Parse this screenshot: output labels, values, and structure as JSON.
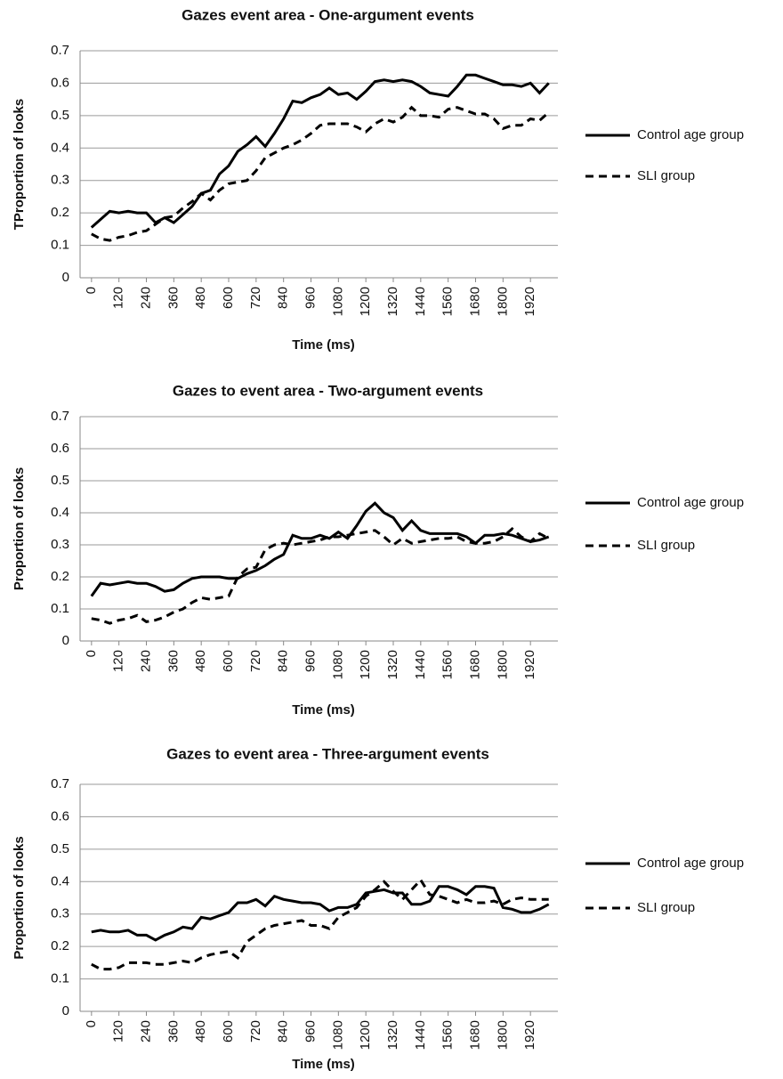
{
  "chart_data": [
    {
      "type": "line",
      "title": "Gazes event area - One-argument events",
      "xlabel": "Time (ms)",
      "ylabel": "TProportion of looks",
      "x": [
        0,
        40,
        80,
        120,
        160,
        200,
        240,
        280,
        320,
        360,
        400,
        440,
        480,
        520,
        560,
        600,
        640,
        680,
        720,
        760,
        800,
        840,
        880,
        920,
        960,
        1000,
        1040,
        1080,
        1120,
        1160,
        1200,
        1240,
        1280,
        1320,
        1360,
        1400,
        1440,
        1480,
        1520,
        1560,
        1600,
        1640,
        1680,
        1720,
        1760,
        1800,
        1840,
        1880,
        1920,
        1960,
        2000
      ],
      "xlim": [
        -50,
        2040
      ],
      "xticks": [
        0,
        120,
        240,
        360,
        480,
        600,
        720,
        840,
        960,
        1080,
        1200,
        1320,
        1440,
        1560,
        1680,
        1800,
        1920
      ],
      "ylim": [
        0,
        0.7
      ],
      "yticks": [
        0,
        0.1,
        0.2,
        0.3,
        0.4,
        0.5,
        0.6,
        0.7
      ],
      "grid": true,
      "series": [
        {
          "name": "Control age group",
          "color": "#000000",
          "dash": "solid",
          "values": [
            0.155,
            0.18,
            0.205,
            0.2,
            0.205,
            0.2,
            0.2,
            0.17,
            0.185,
            0.17,
            0.195,
            0.22,
            0.26,
            0.27,
            0.32,
            0.345,
            0.39,
            0.41,
            0.435,
            0.405,
            0.445,
            0.49,
            0.545,
            0.54,
            0.555,
            0.565,
            0.585,
            0.565,
            0.57,
            0.55,
            0.575,
            0.605,
            0.61,
            0.605,
            0.61,
            0.605,
            0.59,
            0.57,
            0.565,
            0.56,
            0.59,
            0.625,
            0.625,
            0.615,
            0.605,
            0.595,
            0.595,
            0.59,
            0.6,
            0.57,
            0.6
          ]
        },
        {
          "name": "SLI group",
          "color": "#000000",
          "dash": "dashed",
          "values": [
            0.135,
            0.12,
            0.115,
            0.125,
            0.13,
            0.14,
            0.145,
            0.165,
            0.185,
            0.19,
            0.215,
            0.235,
            0.26,
            0.24,
            0.27,
            0.29,
            0.295,
            0.3,
            0.33,
            0.37,
            0.385,
            0.4,
            0.41,
            0.425,
            0.445,
            0.47,
            0.475,
            0.475,
            0.475,
            0.465,
            0.45,
            0.475,
            0.49,
            0.48,
            0.495,
            0.525,
            0.5,
            0.5,
            0.495,
            0.52,
            0.525,
            0.515,
            0.505,
            0.505,
            0.49,
            0.46,
            0.47,
            0.47,
            0.49,
            0.485,
            0.51
          ]
        }
      ]
    },
    {
      "type": "line",
      "title": "Gazes to event area - Two-argument events",
      "xlabel": "Time (ms)",
      "ylabel": "Proportion of looks",
      "x": [
        0,
        40,
        80,
        120,
        160,
        200,
        240,
        280,
        320,
        360,
        400,
        440,
        480,
        520,
        560,
        600,
        640,
        680,
        720,
        760,
        800,
        840,
        880,
        920,
        960,
        1000,
        1040,
        1080,
        1120,
        1160,
        1200,
        1240,
        1280,
        1320,
        1360,
        1400,
        1440,
        1480,
        1520,
        1560,
        1600,
        1640,
        1680,
        1720,
        1760,
        1800,
        1840,
        1880,
        1920,
        1960,
        2000
      ],
      "xlim": [
        -50,
        2040
      ],
      "xticks": [
        0,
        120,
        240,
        360,
        480,
        600,
        720,
        840,
        960,
        1080,
        1200,
        1320,
        1440,
        1560,
        1680,
        1800,
        1920
      ],
      "ylim": [
        0,
        0.7
      ],
      "yticks": [
        0,
        0.1,
        0.2,
        0.3,
        0.4,
        0.5,
        0.6,
        0.7
      ],
      "grid": true,
      "series": [
        {
          "name": "Control age group",
          "color": "#000000",
          "dash": "solid",
          "values": [
            0.14,
            0.18,
            0.175,
            0.18,
            0.185,
            0.18,
            0.18,
            0.17,
            0.155,
            0.16,
            0.18,
            0.195,
            0.2,
            0.2,
            0.2,
            0.195,
            0.195,
            0.21,
            0.22,
            0.235,
            0.255,
            0.27,
            0.33,
            0.32,
            0.32,
            0.33,
            0.32,
            0.34,
            0.32,
            0.36,
            0.405,
            0.43,
            0.4,
            0.385,
            0.345,
            0.375,
            0.345,
            0.335,
            0.335,
            0.335,
            0.335,
            0.325,
            0.305,
            0.33,
            0.33,
            0.335,
            0.33,
            0.32,
            0.31,
            0.315,
            0.325
          ]
        },
        {
          "name": "SLI group",
          "color": "#000000",
          "dash": "dashed",
          "values": [
            0.07,
            0.065,
            0.055,
            0.065,
            0.07,
            0.08,
            0.06,
            0.065,
            0.075,
            0.09,
            0.1,
            0.12,
            0.135,
            0.13,
            0.135,
            0.14,
            0.2,
            0.225,
            0.23,
            0.285,
            0.3,
            0.305,
            0.3,
            0.305,
            0.31,
            0.315,
            0.325,
            0.325,
            0.33,
            0.335,
            0.34,
            0.345,
            0.325,
            0.3,
            0.32,
            0.305,
            0.31,
            0.315,
            0.32,
            0.32,
            0.325,
            0.31,
            0.305,
            0.305,
            0.31,
            0.325,
            0.35,
            0.325,
            0.31,
            0.335,
            0.32
          ]
        }
      ]
    },
    {
      "type": "line",
      "title": "Gazes to event area - Three-argument events",
      "xlabel": "Time (ms)",
      "ylabel": "Proportion of looks",
      "x": [
        0,
        40,
        80,
        120,
        160,
        200,
        240,
        280,
        320,
        360,
        400,
        440,
        480,
        520,
        560,
        600,
        640,
        680,
        720,
        760,
        800,
        840,
        880,
        920,
        960,
        1000,
        1040,
        1080,
        1120,
        1160,
        1200,
        1240,
        1280,
        1320,
        1360,
        1400,
        1440,
        1480,
        1520,
        1560,
        1600,
        1640,
        1680,
        1720,
        1760,
        1800,
        1840,
        1880,
        1920,
        1960,
        2000
      ],
      "xlim": [
        -50,
        2040
      ],
      "xticks": [
        0,
        120,
        240,
        360,
        480,
        600,
        720,
        840,
        960,
        1080,
        1200,
        1320,
        1440,
        1560,
        1680,
        1800,
        1920
      ],
      "ylim": [
        0,
        0.7
      ],
      "yticks": [
        0,
        0.1,
        0.2,
        0.3,
        0.4,
        0.5,
        0.6,
        0.7
      ],
      "grid": true,
      "series": [
        {
          "name": "Control age group",
          "color": "#000000",
          "dash": "solid",
          "values": [
            0.245,
            0.25,
            0.245,
            0.245,
            0.25,
            0.235,
            0.235,
            0.22,
            0.235,
            0.245,
            0.26,
            0.255,
            0.29,
            0.285,
            0.295,
            0.305,
            0.335,
            0.335,
            0.345,
            0.325,
            0.355,
            0.345,
            0.34,
            0.335,
            0.335,
            0.33,
            0.31,
            0.32,
            0.32,
            0.33,
            0.365,
            0.37,
            0.375,
            0.365,
            0.365,
            0.33,
            0.33,
            0.34,
            0.385,
            0.385,
            0.375,
            0.36,
            0.385,
            0.385,
            0.38,
            0.32,
            0.315,
            0.305,
            0.305,
            0.315,
            0.33
          ]
        },
        {
          "name": "SLI group",
          "color": "#000000",
          "dash": "dashed",
          "values": [
            0.145,
            0.13,
            0.13,
            0.135,
            0.15,
            0.15,
            0.15,
            0.145,
            0.145,
            0.15,
            0.155,
            0.15,
            0.165,
            0.175,
            0.18,
            0.185,
            0.165,
            0.215,
            0.235,
            0.255,
            0.265,
            0.27,
            0.275,
            0.28,
            0.265,
            0.265,
            0.255,
            0.29,
            0.305,
            0.32,
            0.355,
            0.375,
            0.4,
            0.37,
            0.345,
            0.375,
            0.405,
            0.36,
            0.355,
            0.345,
            0.335,
            0.345,
            0.335,
            0.335,
            0.34,
            0.33,
            0.345,
            0.35,
            0.345,
            0.345,
            0.345
          ]
        }
      ]
    }
  ]
}
